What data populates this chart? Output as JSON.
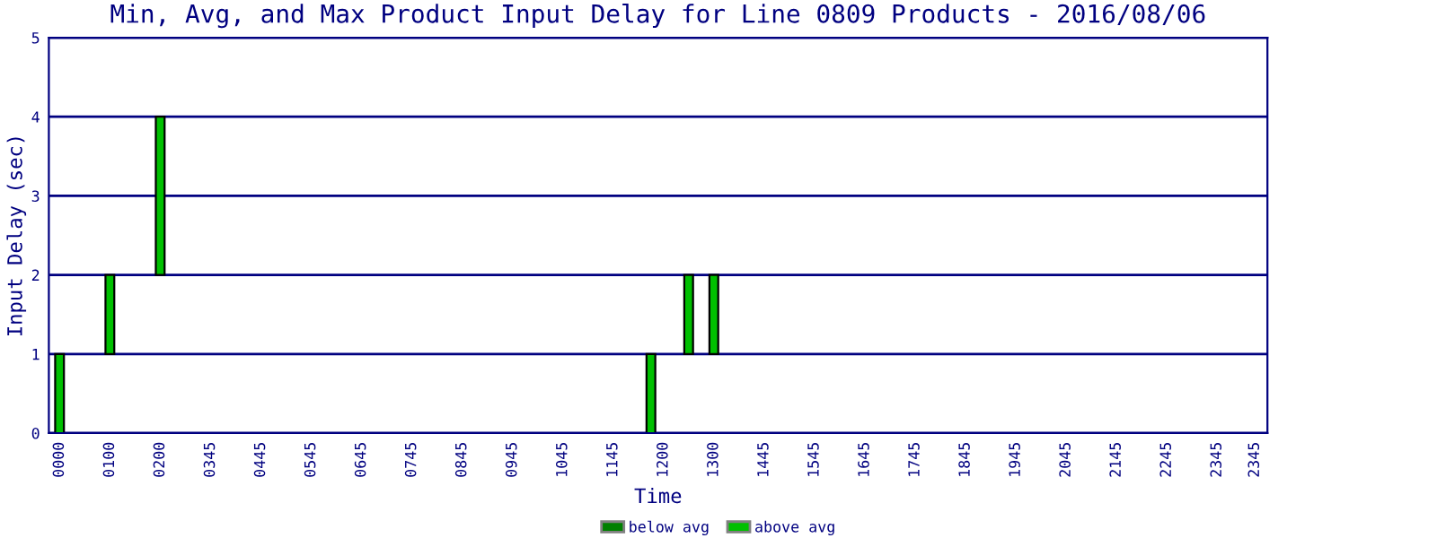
{
  "chart_data": {
    "type": "bar",
    "title": "Min, Avg, and Max Product Input Delay for Line 0809 Products - 2016/08/06",
    "xlabel": "Time",
    "ylabel": "Input Delay (sec)",
    "categories": [
      "0000",
      null,
      null,
      null,
      "0100",
      null,
      null,
      null,
      "0200",
      null,
      null,
      null,
      "0345",
      null,
      null,
      null,
      "0445",
      null,
      null,
      null,
      "0545",
      null,
      null,
      null,
      "0645",
      null,
      null,
      null,
      "0745",
      null,
      null,
      null,
      "0845",
      null,
      null,
      null,
      "0945",
      null,
      null,
      null,
      "1045",
      null,
      null,
      null,
      "1145",
      null,
      null,
      null,
      "1200",
      null,
      null,
      null,
      "1300",
      null,
      null,
      null,
      "1445",
      null,
      null,
      null,
      "1545",
      null,
      null,
      null,
      "1645",
      null,
      null,
      null,
      "1745",
      null,
      null,
      null,
      "1845",
      null,
      null,
      null,
      "1945",
      null,
      null,
      null,
      "2045",
      null,
      null,
      null,
      "2145",
      null,
      null,
      null,
      "2245",
      null,
      null,
      null,
      "2345",
      null,
      null,
      "2345"
    ],
    "series": [
      {
        "name": "below avg",
        "color": "#008000",
        "values": [
          null,
          null,
          null,
          null,
          null,
          null,
          null,
          null,
          null,
          null,
          null,
          null,
          null,
          null,
          null,
          null,
          null,
          null,
          null,
          null,
          null,
          null,
          null,
          null,
          null,
          null,
          null,
          null,
          null,
          null,
          null,
          null,
          null,
          null,
          null,
          null,
          null,
          null,
          null,
          null,
          null,
          null,
          null,
          null,
          null,
          null,
          null,
          null,
          null,
          null,
          null,
          null,
          null,
          null,
          null,
          null,
          null,
          null,
          null,
          null,
          null,
          null,
          null,
          null,
          null,
          null,
          null,
          null,
          null,
          null,
          null,
          null,
          null,
          null,
          null,
          null,
          null,
          null,
          null,
          null,
          null,
          null,
          null,
          null,
          null,
          null,
          null,
          null,
          null,
          null,
          null,
          null,
          null,
          null,
          null,
          null
        ]
      },
      {
        "name": "above avg",
        "color": "#00c000",
        "base": [
          0,
          null,
          null,
          null,
          1,
          null,
          null,
          null,
          2,
          null,
          null,
          null,
          null,
          null,
          null,
          null,
          null,
          null,
          null,
          null,
          null,
          null,
          null,
          null,
          null,
          null,
          null,
          null,
          null,
          null,
          null,
          null,
          null,
          null,
          null,
          null,
          null,
          null,
          null,
          null,
          null,
          null,
          null,
          null,
          null,
          null,
          null,
          0,
          null,
          null,
          1,
          null,
          1,
          null,
          null,
          null,
          null,
          null,
          null,
          null,
          null,
          null,
          null,
          null,
          null,
          null,
          null,
          null,
          null,
          null,
          null,
          null,
          null,
          null,
          null,
          null,
          null,
          null,
          null,
          null,
          null,
          null,
          null,
          null,
          null,
          null,
          null,
          null,
          null,
          null,
          null,
          null,
          null,
          null,
          null,
          null
        ],
        "values": [
          1,
          null,
          null,
          null,
          1,
          null,
          null,
          null,
          2,
          null,
          null,
          null,
          null,
          null,
          null,
          null,
          null,
          null,
          null,
          null,
          null,
          null,
          null,
          null,
          null,
          null,
          null,
          null,
          null,
          null,
          null,
          null,
          null,
          null,
          null,
          null,
          null,
          null,
          null,
          null,
          null,
          null,
          null,
          null,
          null,
          null,
          null,
          1,
          null,
          null,
          1,
          null,
          1,
          null,
          null,
          null,
          null,
          null,
          null,
          null,
          null,
          null,
          null,
          null,
          null,
          null,
          null,
          null,
          null,
          null,
          null,
          null,
          null,
          null,
          null,
          null,
          null,
          null,
          null,
          null,
          null,
          null,
          null,
          null,
          null,
          null,
          null,
          null,
          null,
          null,
          null,
          null,
          null,
          null,
          null,
          null
        ]
      }
    ],
    "ylim": [
      0,
      5
    ],
    "yticks": [
      0,
      1,
      2,
      3,
      4,
      5
    ],
    "grid": "y",
    "legend": "bottom"
  }
}
